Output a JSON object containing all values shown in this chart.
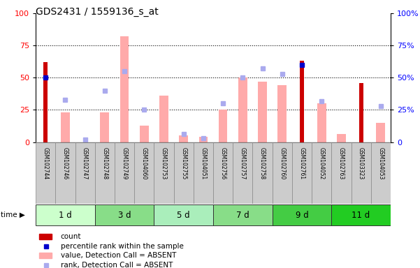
{
  "title": "GDS2431 / 1559136_s_at",
  "samples": [
    "GSM102744",
    "GSM102746",
    "GSM102747",
    "GSM102748",
    "GSM102749",
    "GSM104060",
    "GSM102753",
    "GSM102755",
    "GSM104051",
    "GSM102756",
    "GSM102757",
    "GSM102758",
    "GSM102760",
    "GSM102761",
    "GSM104052",
    "GSM102763",
    "GSM103323",
    "GSM104053"
  ],
  "time_groups": [
    {
      "label": "1 d",
      "indices": [
        0,
        1,
        2
      ],
      "color": "#ccffcc"
    },
    {
      "label": "3 d",
      "indices": [
        3,
        4,
        5
      ],
      "color": "#88dd88"
    },
    {
      "label": "5 d",
      "indices": [
        6,
        7,
        8
      ],
      "color": "#aaeebb"
    },
    {
      "label": "7 d",
      "indices": [
        9,
        10,
        11
      ],
      "color": "#88dd88"
    },
    {
      "label": "9 d",
      "indices": [
        12,
        13,
        14
      ],
      "color": "#44cc44"
    },
    {
      "label": "11 d",
      "indices": [
        15,
        16,
        17
      ],
      "color": "#22cc22"
    }
  ],
  "count_values": [
    62,
    0,
    0,
    0,
    0,
    0,
    0,
    0,
    0,
    0,
    0,
    0,
    0,
    63,
    0,
    0,
    46,
    0
  ],
  "percentile_rank": [
    50,
    0,
    0,
    0,
    0,
    0,
    0,
    0,
    0,
    0,
    0,
    0,
    0,
    60,
    0,
    0,
    0,
    0
  ],
  "value_absent": [
    0,
    23,
    0,
    23,
    82,
    13,
    36,
    5,
    4,
    25,
    50,
    47,
    44,
    0,
    30,
    6,
    0,
    15
  ],
  "rank_absent": [
    0,
    33,
    2,
    40,
    55,
    25,
    0,
    6,
    3,
    30,
    50,
    57,
    53,
    0,
    32,
    0,
    0,
    28
  ],
  "ylim": [
    0,
    100
  ],
  "dotted_lines": [
    25,
    50,
    75
  ],
  "bar_color_count": "#cc0000",
  "bar_color_value_absent": "#ffaaaa",
  "marker_color_percentile": "#0000cc",
  "marker_color_rank_absent": "#aaaaee",
  "sample_bg_color": "#cccccc",
  "plot_bg_color": "#ffffff"
}
